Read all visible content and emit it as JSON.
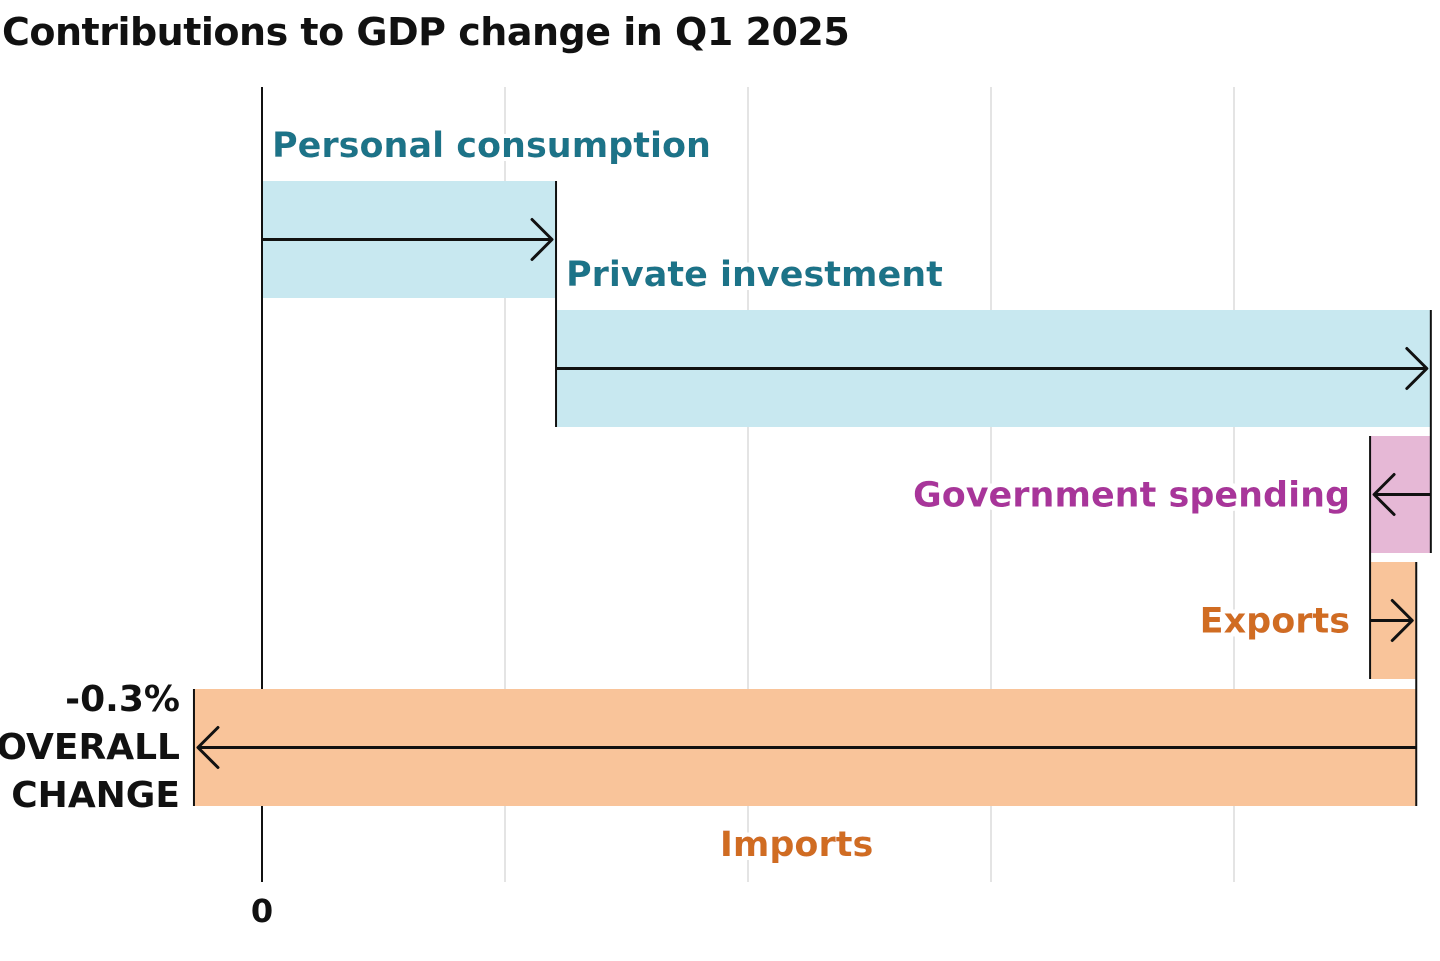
{
  "chart_data": {
    "type": "waterfall",
    "title": "Contributions to GDP change in Q1 2025",
    "xlabel": "",
    "ylabel": "",
    "x_ticks": [
      {
        "value": 0,
        "label": "0"
      }
    ],
    "grid": true,
    "xlim": [
      -0.28,
      4.85
    ],
    "gridlines": [
      1,
      2,
      3,
      4
    ],
    "series": [
      {
        "name": "Personal consumption",
        "value": 1.21,
        "start": 0,
        "end": 1.21,
        "color": "#c8e8f0",
        "label_color": "#1a7388",
        "label_position": "above"
      },
      {
        "name": "Private investment",
        "value": 3.6,
        "start": 1.21,
        "end": 4.81,
        "color": "#c8e8f0",
        "label_color": "#1a7388",
        "label_position": "above"
      },
      {
        "name": "Government spending",
        "value": -0.25,
        "start": 4.81,
        "end": 4.56,
        "color": "#e6b8d6",
        "label_color": "#a8349a",
        "label_position": "left"
      },
      {
        "name": "Exports",
        "value": 0.19,
        "start": 4.56,
        "end": 4.75,
        "color": "#f9c49a",
        "label_color": "#d06c24",
        "label_position": "left"
      },
      {
        "name": "Imports",
        "value": -5.03,
        "start": 4.75,
        "end": -0.28,
        "color": "#f9c49a",
        "label_color": "#d06c24",
        "label_position": "below"
      }
    ],
    "total": {
      "value": "-0.3%",
      "label_line1": "OVERALL",
      "label_line2": "CHANGE",
      "color": "#111111"
    }
  }
}
